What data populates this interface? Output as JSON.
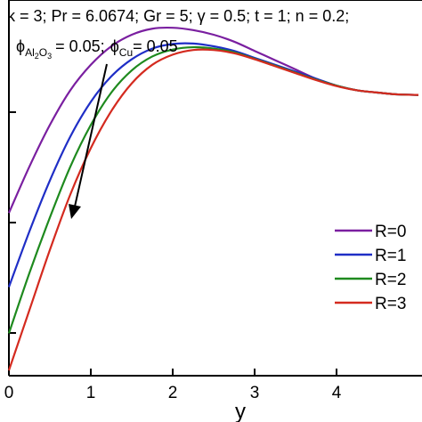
{
  "chart_data": {
    "type": "line",
    "title": "",
    "xlabel": "y",
    "ylabel": "",
    "xlim": [
      0,
      5
    ],
    "x_ticks": [
      "0",
      "1",
      "2",
      "3",
      "4"
    ],
    "annotation": {
      "line1": "κ = 3; Pr = 6.0674; Gr = 5; γ = 0.5; t = 1; n = 0.2;",
      "phi_symbol": "ϕ",
      "phi_al2o3_sub_al": "Al",
      "phi_al2o3_sub_2": "2",
      "phi_al2o3_sub_o": "O",
      "phi_al2o3_sub_3": "3",
      "phi_al2o3_value": "= 0.05;",
      "phi_cu_sub": "Cu",
      "phi_cu_value": "= 0.05"
    },
    "legend_position": "right",
    "series": [
      {
        "name": "R=0",
        "color": "#7a1fa0",
        "x": [
          0,
          0.25,
          0.5,
          0.75,
          1.0,
          1.25,
          1.5,
          1.75,
          2.0,
          2.25,
          2.5,
          2.75,
          3.0,
          3.25,
          3.5,
          3.75,
          4.0,
          4.25,
          4.5,
          4.75,
          5.0
        ],
        "y": [
          0.54,
          0.64,
          0.73,
          0.805,
          0.86,
          0.9,
          0.925,
          0.938,
          0.94,
          0.935,
          0.925,
          0.91,
          0.89,
          0.87,
          0.85,
          0.83,
          0.815,
          0.805,
          0.8,
          0.796,
          0.795
        ]
      },
      {
        "name": "R=1",
        "color": "#1f2ec6",
        "x": [
          0,
          0.25,
          0.5,
          0.75,
          1.0,
          1.25,
          1.5,
          1.75,
          2.0,
          2.25,
          2.5,
          2.75,
          3.0,
          3.25,
          3.5,
          3.75,
          4.0,
          4.25,
          4.5,
          4.75,
          5.0
        ],
        "y": [
          0.38,
          0.5,
          0.61,
          0.705,
          0.78,
          0.835,
          0.872,
          0.895,
          0.905,
          0.906,
          0.9,
          0.89,
          0.875,
          0.86,
          0.845,
          0.83,
          0.815,
          0.805,
          0.8,
          0.796,
          0.795
        ]
      },
      {
        "name": "R=2",
        "color": "#1e8a1e",
        "x": [
          0,
          0.25,
          0.5,
          0.75,
          1.0,
          1.25,
          1.5,
          1.75,
          2.0,
          2.25,
          2.5,
          2.75,
          3.0,
          3.25,
          3.5,
          3.75,
          4.0,
          4.25,
          4.5,
          4.75,
          5.0
        ],
        "y": [
          0.28,
          0.41,
          0.53,
          0.64,
          0.73,
          0.8,
          0.848,
          0.878,
          0.893,
          0.898,
          0.895,
          0.887,
          0.873,
          0.858,
          0.843,
          0.828,
          0.815,
          0.805,
          0.8,
          0.796,
          0.795
        ]
      },
      {
        "name": "R=3",
        "color": "#d42a1f",
        "x": [
          0,
          0.25,
          0.5,
          0.75,
          1.0,
          1.25,
          1.5,
          1.75,
          2.0,
          2.25,
          2.5,
          2.75,
          3.0,
          3.25,
          3.5,
          3.75,
          4.0,
          4.25,
          4.5,
          4.75,
          5.0
        ],
        "y": [
          0.2,
          0.33,
          0.46,
          0.58,
          0.68,
          0.76,
          0.82,
          0.86,
          0.882,
          0.892,
          0.892,
          0.885,
          0.872,
          0.857,
          0.842,
          0.827,
          0.814,
          0.805,
          0.8,
          0.796,
          0.795
        ]
      }
    ]
  }
}
